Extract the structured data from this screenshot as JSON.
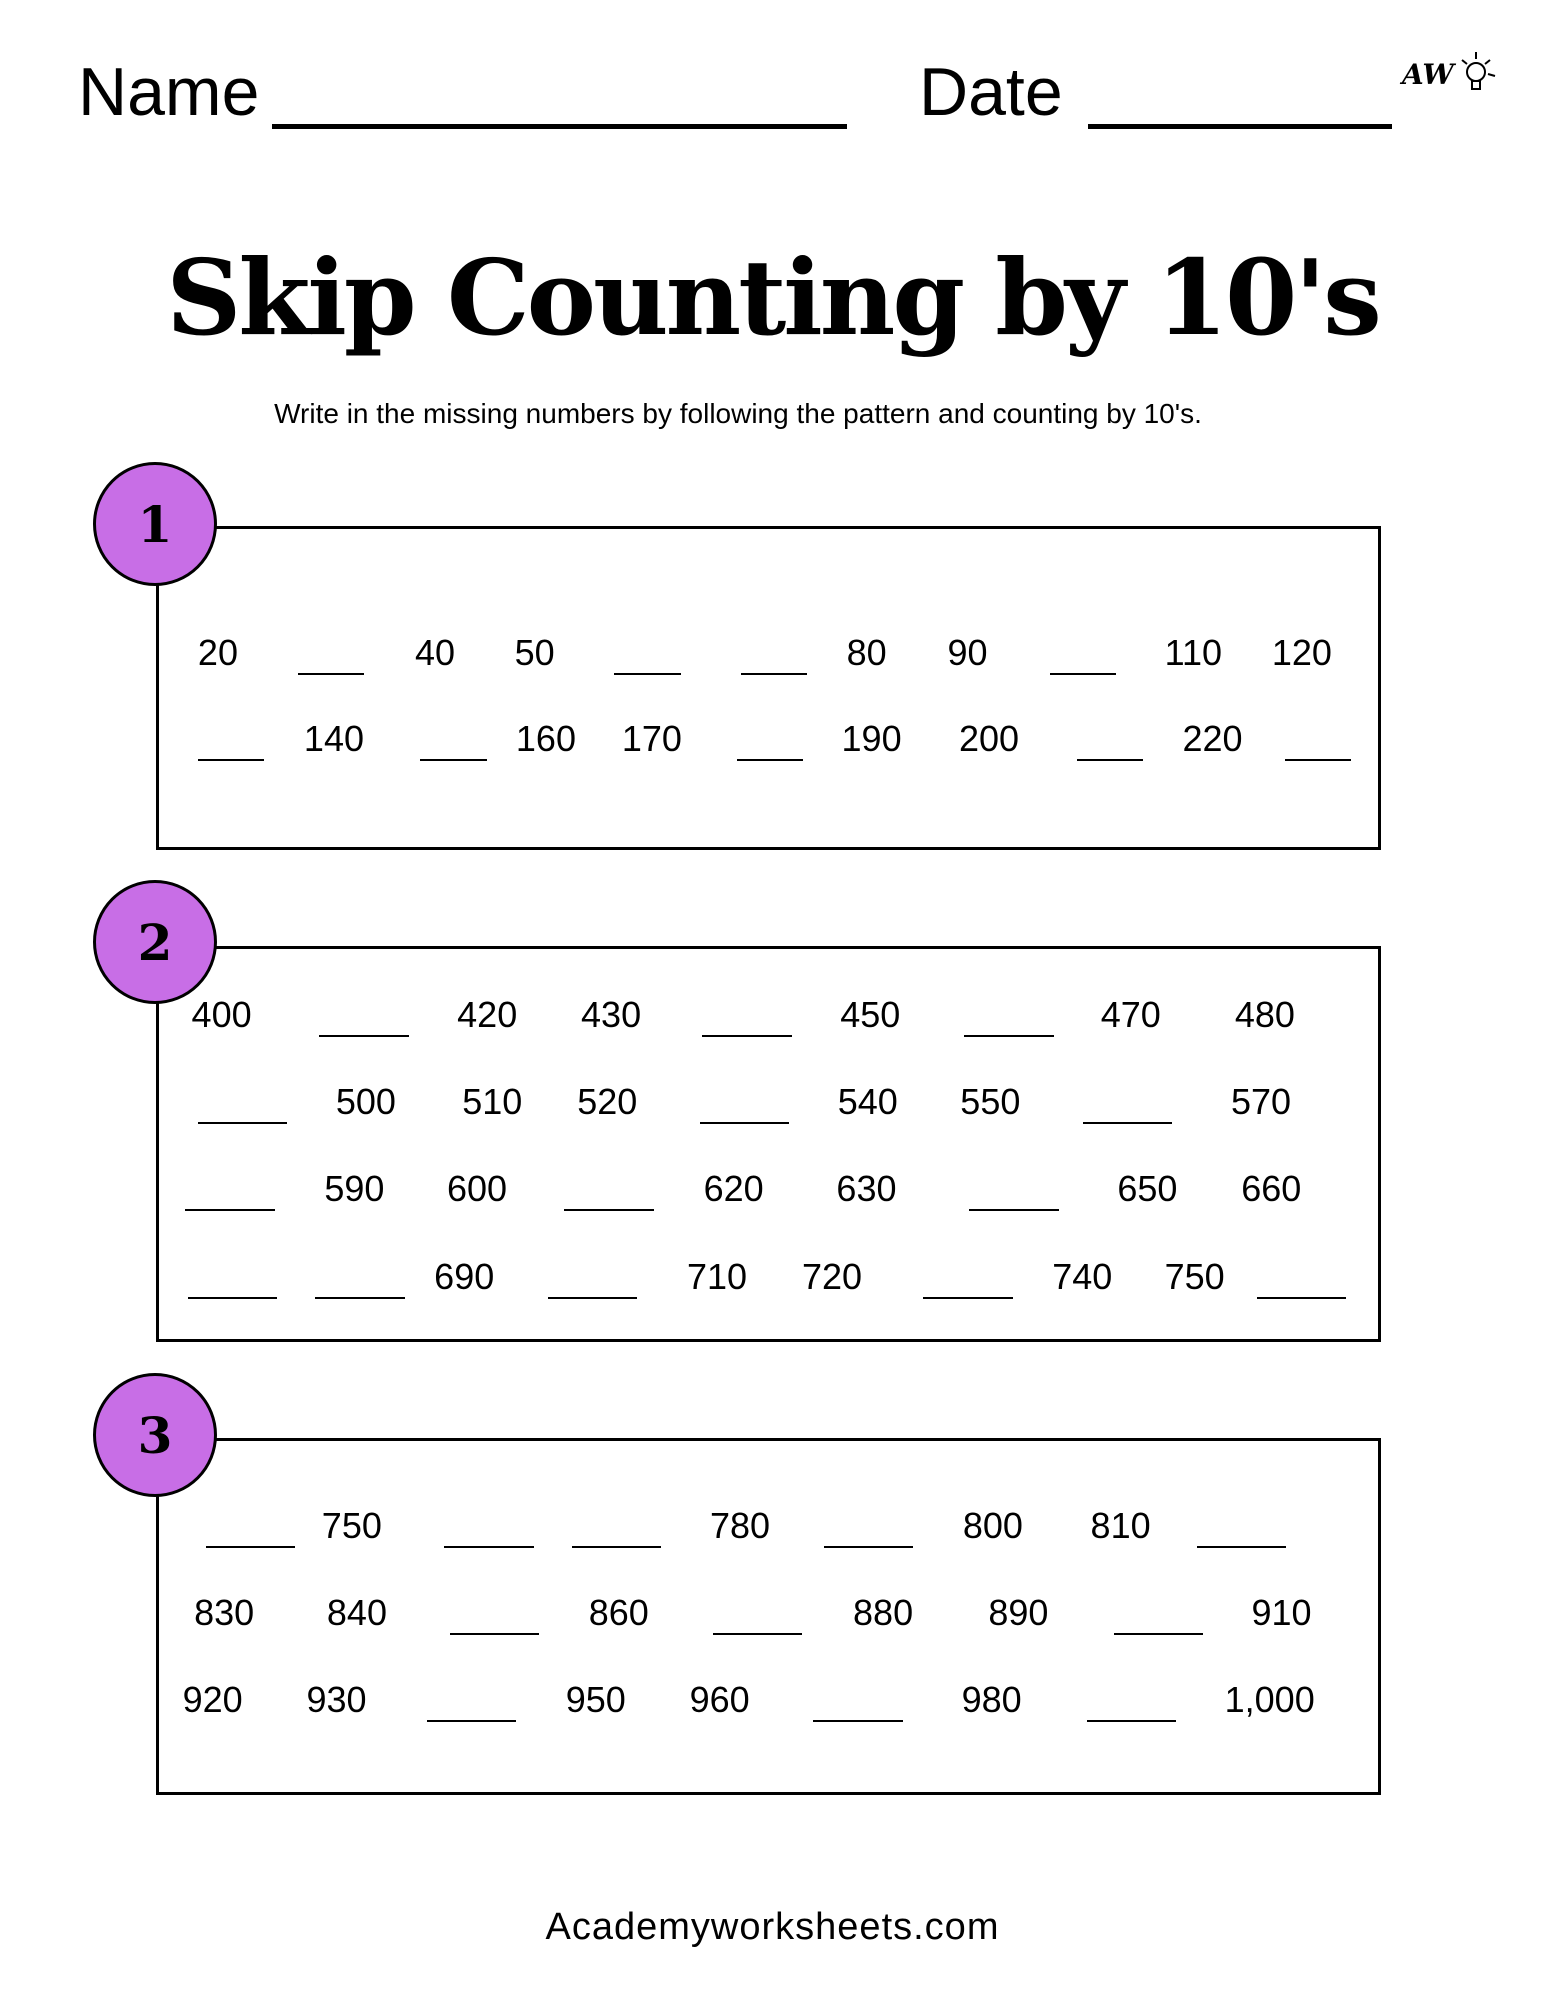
{
  "header": {
    "name_label": "Name",
    "date_label": "Date",
    "logo_text": "AW"
  },
  "title": "Skip Counting by 10's",
  "instructions": "Write in the missing numbers by following the pattern and counting by 10's.",
  "accent_color": "#c86ee6",
  "sections": [
    {
      "number": "1",
      "rows": [
        [
          "20",
          "",
          "40",
          "50",
          "",
          "",
          "80",
          "90",
          "",
          "110",
          "120"
        ],
        [
          "",
          "140",
          "",
          "160",
          "170",
          "",
          "190",
          "200",
          "",
          "220",
          ""
        ]
      ]
    },
    {
      "number": "2",
      "rows": [
        [
          "400",
          "",
          "420",
          "430",
          "",
          "450",
          "",
          "470",
          "480"
        ],
        [
          "",
          "500",
          "510",
          "520",
          "",
          "540",
          "550",
          "",
          "570"
        ],
        [
          "",
          "590",
          "600",
          "",
          "620",
          "630",
          "",
          "650",
          "660"
        ],
        [
          "",
          "",
          "690",
          "",
          "710",
          "720",
          "",
          "740",
          "750",
          ""
        ]
      ]
    },
    {
      "number": "3",
      "rows": [
        [
          "",
          "750",
          "",
          "",
          "780",
          "",
          "800",
          "810",
          ""
        ],
        [
          "830",
          "840",
          "",
          "860",
          "",
          "880",
          "890",
          "",
          "910"
        ],
        [
          "920",
          "930",
          "",
          "950",
          "960",
          "",
          "980",
          "",
          "1,000"
        ]
      ]
    }
  ],
  "footer": "Academyworksheets.com"
}
